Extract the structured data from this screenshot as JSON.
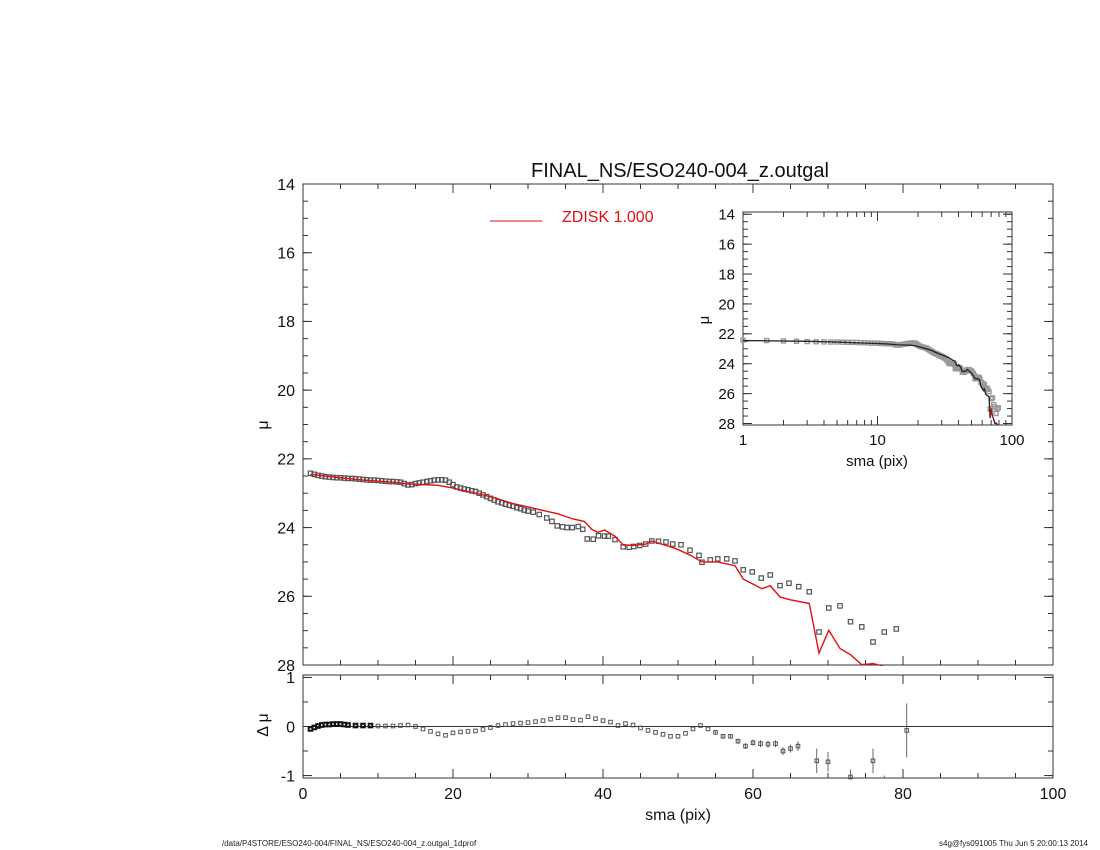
{
  "chart_data": [
    {
      "type": "scatter",
      "panel": "main",
      "title": "FINAL_NS/ESO240-004_z.outgal",
      "xlabel": "sma (pix)",
      "ylabel": "μ",
      "xlim": [
        0,
        100
      ],
      "ylim": [
        14,
        28
      ],
      "y_inverted": true,
      "xticks": [
        0,
        20,
        40,
        60,
        80,
        100
      ],
      "yticks": [
        14,
        16,
        18,
        20,
        22,
        24,
        26,
        28
      ],
      "legend": {
        "label": "ZDISK  1.000",
        "placement": "top-center",
        "color": "#e01010"
      },
      "series": [
        {
          "name": "observed",
          "style": "squares",
          "color": "#555555",
          "x": [
            1,
            1.5,
            2,
            2.5,
            3,
            3.5,
            4,
            4.5,
            5,
            5.5,
            6,
            6.5,
            7,
            7.5,
            8,
            8.5,
            9,
            9.5,
            10,
            10.5,
            11,
            11.5,
            12,
            12.5,
            13,
            13.5,
            14,
            14.5,
            15,
            15.5,
            16,
            16.5,
            17,
            17.5,
            18,
            18.5,
            19,
            19.5,
            20,
            20.5,
            21,
            21.5,
            22,
            22.5,
            23,
            23.5,
            24,
            24.5,
            25,
            25.5,
            26,
            26.5,
            27,
            27.5,
            28,
            28.5,
            29,
            29.5,
            30,
            30.7,
            31.5,
            32.5,
            33.2,
            33.9,
            34.6,
            35.2,
            35.9,
            36.7,
            37.3,
            37.9,
            38.7,
            39.4,
            40.2,
            40.7,
            41.6,
            42.7,
            43.5,
            44.1,
            44.9,
            45.7,
            46.5,
            47.4,
            48.4,
            49.3,
            50.4,
            51.6,
            52.8,
            53.2,
            54.3,
            55.3,
            56.5,
            57.6,
            58.7,
            59.9,
            61.1,
            62.3,
            63.6,
            64.8,
            66.1,
            67.5,
            68.8,
            70.1,
            71.6,
            73.0,
            74.5,
            76.0,
            77.5,
            79.1
          ],
          "y": [
            22.42,
            22.45,
            22.48,
            22.5,
            22.52,
            22.53,
            22.54,
            22.55,
            22.55,
            22.56,
            22.57,
            22.57,
            22.58,
            22.59,
            22.6,
            22.61,
            22.62,
            22.62,
            22.63,
            22.64,
            22.65,
            22.66,
            22.66,
            22.67,
            22.68,
            22.72,
            22.76,
            22.75,
            22.72,
            22.7,
            22.68,
            22.66,
            22.64,
            22.62,
            22.61,
            22.61,
            22.62,
            22.68,
            22.75,
            22.82,
            22.85,
            22.88,
            22.9,
            22.93,
            22.95,
            23.0,
            23.05,
            23.1,
            23.15,
            23.2,
            23.25,
            23.28,
            23.32,
            23.35,
            23.38,
            23.42,
            23.45,
            23.49,
            23.52,
            23.55,
            23.62,
            23.72,
            23.82,
            23.95,
            23.98,
            24.0,
            24.0,
            23.97,
            24.05,
            24.33,
            24.34,
            24.24,
            24.25,
            24.25,
            24.35,
            24.56,
            24.57,
            24.55,
            24.52,
            24.48,
            24.39,
            24.4,
            24.42,
            24.48,
            24.5,
            24.66,
            24.81,
            25.01,
            24.94,
            24.91,
            24.91,
            24.97,
            25.23,
            25.29,
            25.47,
            25.38,
            25.69,
            25.62,
            25.72,
            25.87,
            27.04,
            26.34,
            26.28,
            26.74,
            26.89,
            27.33,
            27.04,
            26.95
          ]
        },
        {
          "name": "ZDISK  1.000",
          "style": "line",
          "color": "#e01010",
          "x": [
            1,
            3,
            5,
            7,
            10,
            12,
            14,
            16,
            18,
            20,
            22,
            25,
            28,
            30,
            32,
            34,
            36,
            37.5,
            38.5,
            39.3,
            40.2,
            41.6,
            42.7,
            44,
            45.7,
            46.5,
            47.2,
            49.6,
            51.6,
            53.2,
            55.3,
            57.6,
            58.7,
            61.2,
            62.3,
            63.6,
            64.9,
            67.5,
            68.8,
            70.1,
            71.6,
            73,
            74.5,
            76,
            76.8,
            78
          ],
          "y": [
            22.45,
            22.5,
            22.55,
            22.6,
            22.65,
            22.68,
            22.73,
            22.75,
            22.77,
            22.85,
            22.95,
            23.1,
            23.3,
            23.4,
            23.5,
            23.6,
            23.75,
            23.82,
            24.05,
            24.14,
            24.07,
            24.25,
            24.51,
            24.52,
            24.48,
            24.39,
            24.44,
            24.6,
            24.8,
            25.0,
            25.0,
            25.11,
            25.5,
            25.78,
            25.69,
            26.02,
            26.1,
            26.21,
            27.65,
            26.99,
            27.52,
            27.7,
            27.99,
            27.96,
            28.0,
            28.1
          ]
        }
      ]
    },
    {
      "type": "scatter",
      "panel": "residual",
      "xlabel": "sma (pix)",
      "ylabel": "Δ μ",
      "xlim": [
        0,
        100
      ],
      "ylim": [
        -1.05,
        1.05
      ],
      "xticks": [
        0,
        20,
        40,
        60,
        80,
        100
      ],
      "yticks": [
        -1,
        0,
        1
      ],
      "reference_line": 0,
      "series": [
        {
          "name": "residual",
          "style": "squares-errorbars",
          "color": "#555555",
          "x": [
            1,
            1.5,
            2,
            2.5,
            3,
            3.5,
            4,
            4.5,
            5,
            5.5,
            6,
            7,
            8,
            9,
            10,
            11,
            12,
            13,
            14,
            15,
            16,
            17,
            18,
            19,
            20,
            21,
            22,
            23,
            24,
            25,
            26,
            27,
            28,
            29,
            30,
            31,
            32,
            33,
            34,
            35,
            36,
            37,
            38,
            39,
            40,
            41,
            42,
            43,
            44,
            45,
            46,
            47,
            48,
            49,
            50,
            51,
            52,
            53,
            54,
            55,
            56,
            57,
            58,
            59,
            60,
            61,
            62,
            63,
            64,
            65,
            66,
            68.5,
            70,
            73,
            74.5,
            76,
            77.5,
            80.5
          ],
          "y": [
            -0.05,
            -0.02,
            0.01,
            0.03,
            0.04,
            0.04,
            0.05,
            0.05,
            0.05,
            0.04,
            0.03,
            0.02,
            0.02,
            0.02,
            0.01,
            0.01,
            0.01,
            0.02,
            0.03,
            0,
            -0.05,
            -0.1,
            -0.15,
            -0.18,
            -0.13,
            -0.11,
            -0.1,
            -0.09,
            -0.06,
            -0.02,
            0.02,
            0.04,
            0.06,
            0.07,
            0.08,
            0.1,
            0.12,
            0.15,
            0.18,
            0.18,
            0.14,
            0.13,
            0.2,
            0.16,
            0.12,
            0.09,
            0.02,
            0.06,
            0.03,
            -0.03,
            -0.08,
            -0.12,
            -0.16,
            -0.2,
            -0.2,
            -0.14,
            -0.05,
            0.02,
            -0.05,
            -0.12,
            -0.2,
            -0.2,
            -0.3,
            -0.4,
            -0.33,
            -0.35,
            -0.36,
            -0.35,
            -0.5,
            -0.45,
            -0.4,
            -0.7,
            -0.72,
            -1.03,
            -1.2,
            -0.7,
            -1.2,
            -0.08
          ],
          "err": [
            0,
            0,
            0,
            0,
            0,
            0,
            0,
            0,
            0,
            0,
            0,
            0,
            0,
            0,
            0,
            0,
            0,
            0,
            0,
            0,
            0,
            0,
            0,
            0,
            0,
            0,
            0,
            0,
            0,
            0,
            0,
            0,
            0,
            0,
            0,
            0,
            0,
            0,
            0,
            0,
            0,
            0,
            0,
            0,
            0,
            0,
            0,
            0,
            0,
            0,
            0,
            0,
            0,
            0,
            0,
            0,
            0,
            0,
            0,
            0.03,
            0.04,
            0.04,
            0.05,
            0.06,
            0.06,
            0.07,
            0.07,
            0.07,
            0.08,
            0.08,
            0.1,
            0.25,
            0.2,
            0.15,
            0.15,
            0.25,
            0.2,
            0.55
          ]
        }
      ]
    },
    {
      "type": "scatter",
      "panel": "inset",
      "xlabel": "sma (pix)",
      "ylabel": "μ",
      "xscale": "log",
      "xlim": [
        1,
        100
      ],
      "ylim": [
        14,
        28
      ],
      "y_inverted": true,
      "xticks": [
        1,
        10,
        100
      ],
      "xtick_labels": [
        "1",
        "10",
        "100"
      ],
      "yticks": [
        14,
        16,
        18,
        20,
        22,
        24,
        26,
        28
      ],
      "series_ref": "same observed and model data as main panel"
    }
  ],
  "footer": {
    "left": "/data/P4STORE/ESO240-004/FINAL_NS/ESO240-004_z.outgal_1dprof",
    "right": "s4g@fys091005  Thu Jun  5 20:00:13 2014"
  }
}
